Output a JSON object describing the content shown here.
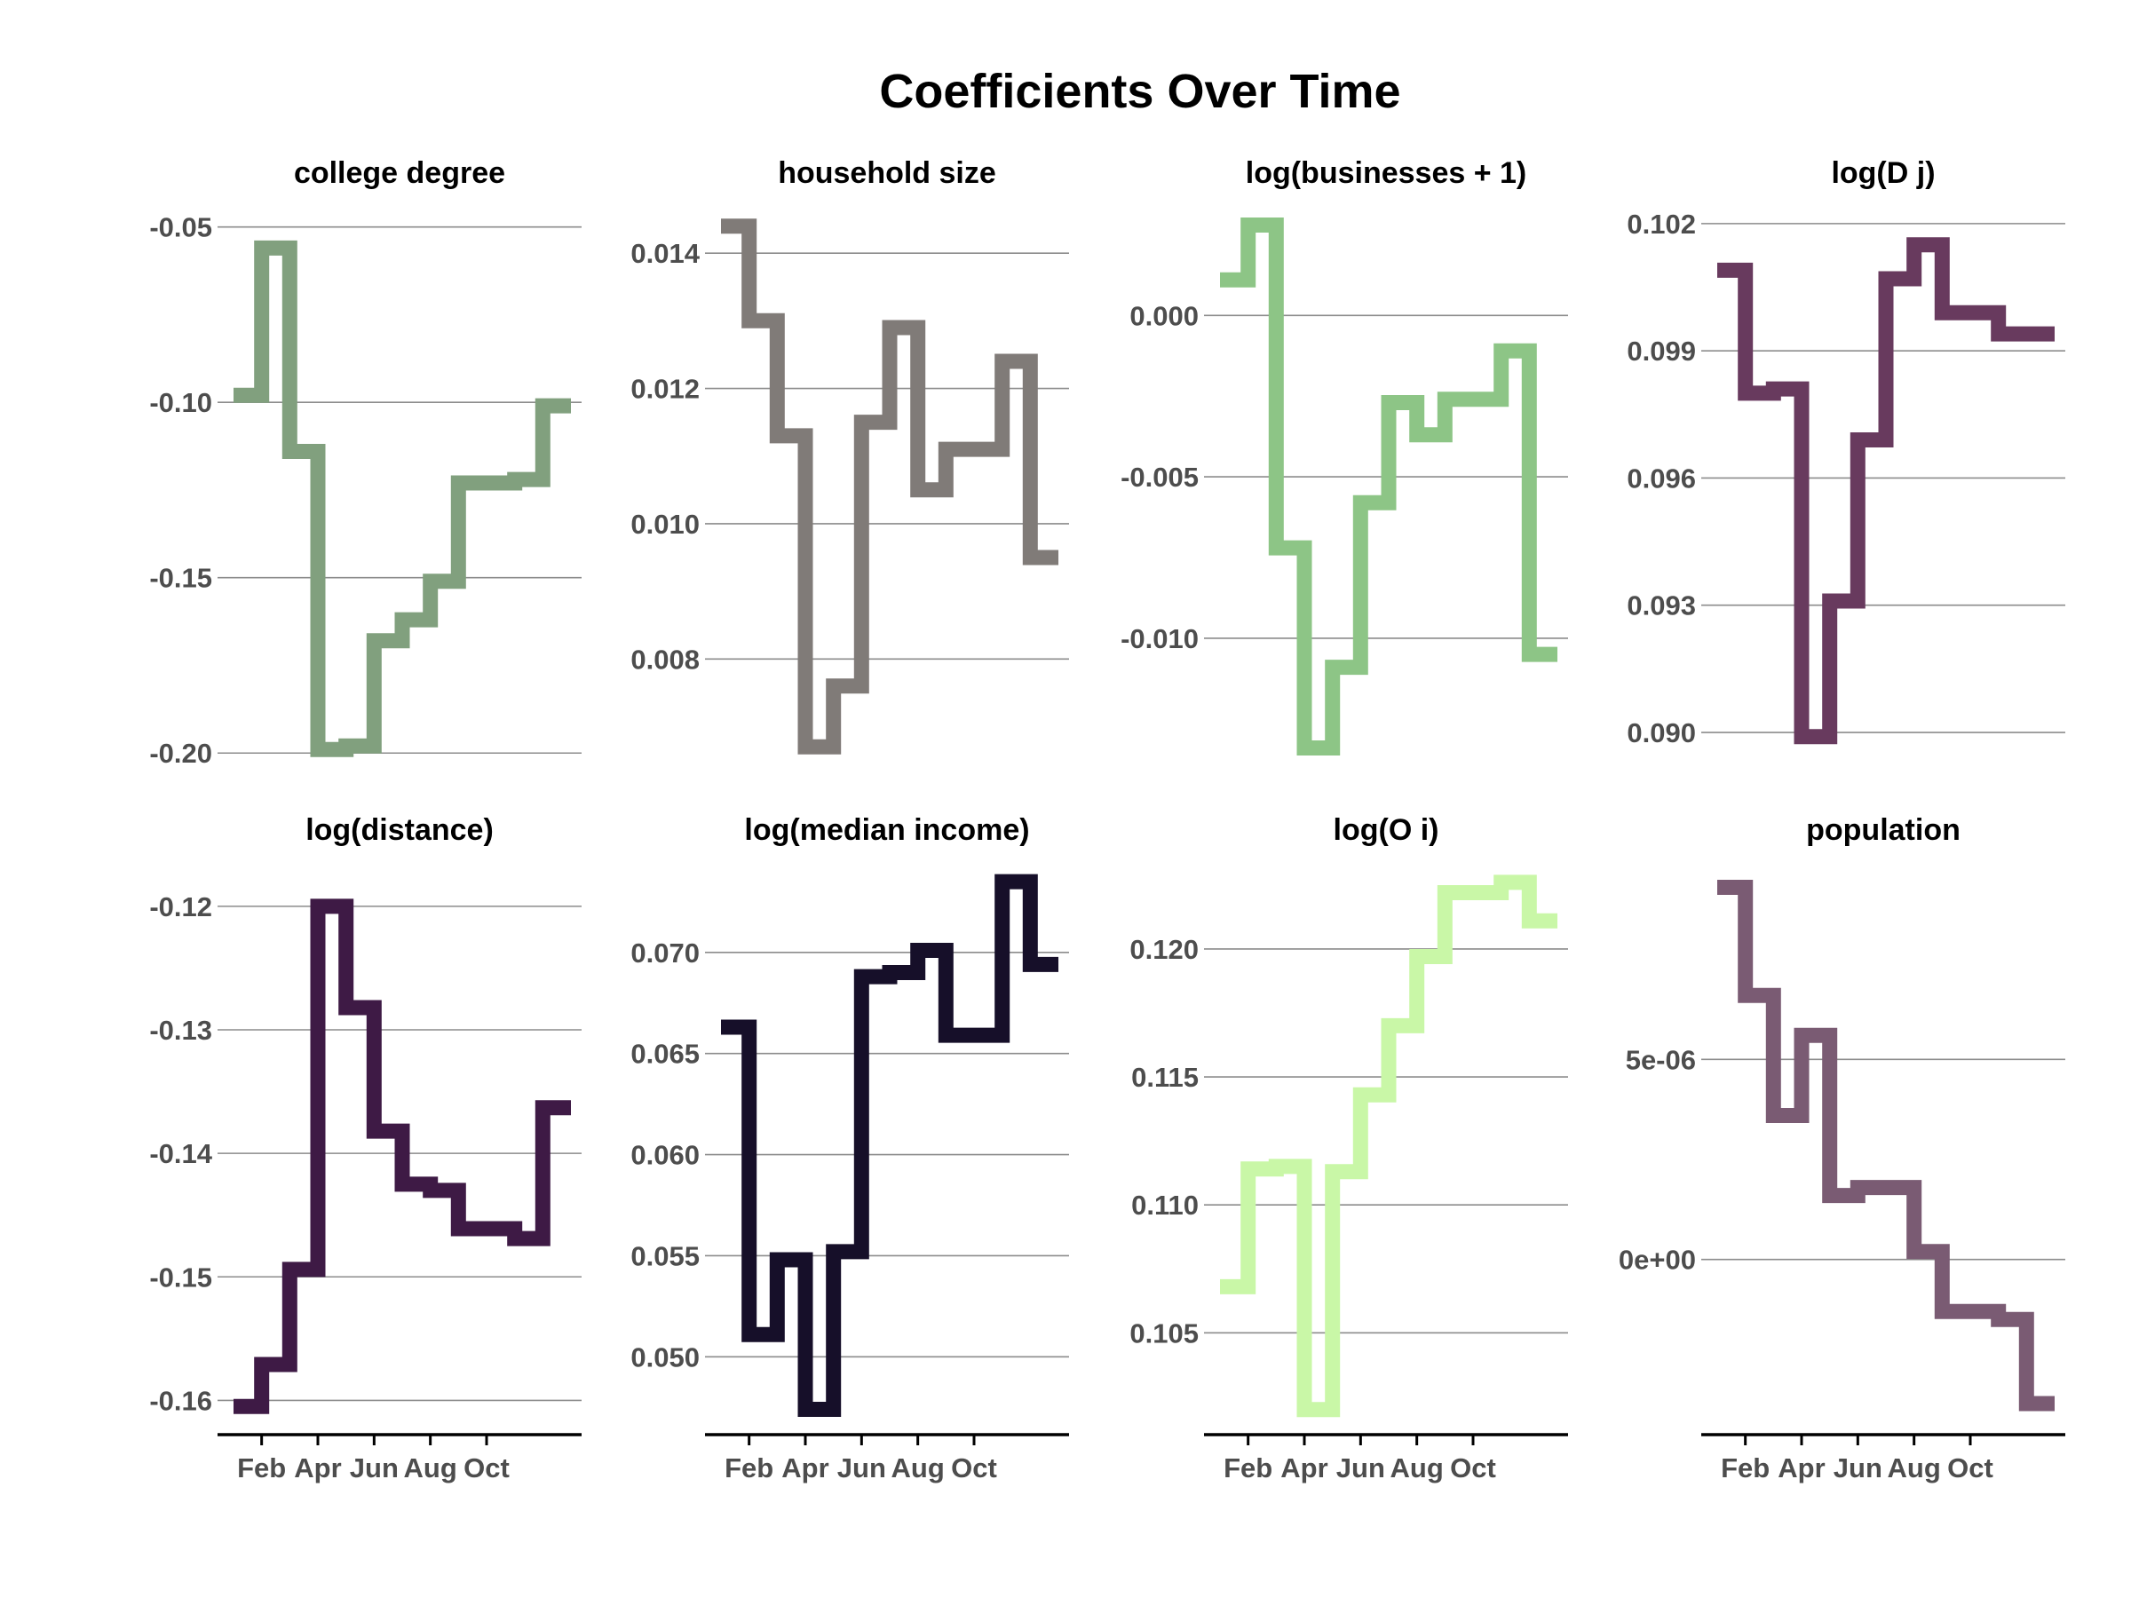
{
  "figure": {
    "title": "Coefficients Over Time"
  },
  "chart_data": [
    {
      "type": "line",
      "step": true,
      "title": "college degree",
      "color": "#81a07e",
      "x_ticks": [
        "Feb",
        "Apr",
        "Jun",
        "Aug",
        "Oct"
      ],
      "yticks": [
        -0.2,
        -0.15,
        -0.1,
        -0.05
      ],
      "ytick_labels": [
        "-0.20",
        "-0.15",
        "-0.10",
        "-0.05"
      ],
      "ylim": [
        -0.205,
        -0.043
      ],
      "values": [
        -0.098,
        -0.056,
        -0.114,
        -0.199,
        -0.198,
        -0.168,
        -0.162,
        -0.151,
        -0.123,
        -0.123,
        -0.122,
        -0.101
      ]
    },
    {
      "type": "line",
      "step": true,
      "title": "household size",
      "color": "#807b78",
      "x_ticks": [
        "Feb",
        "Apr",
        "Jun",
        "Aug",
        "Oct"
      ],
      "yticks": [
        0.008,
        0.01,
        0.012,
        0.014
      ],
      "ytick_labels": [
        "0.008",
        "0.010",
        "0.012",
        "0.014"
      ],
      "ylim": [
        0.00635,
        0.01475
      ],
      "values": [
        0.0144,
        0.013,
        0.0113,
        0.0067,
        0.0076,
        0.0115,
        0.0129,
        0.0105,
        0.0111,
        0.0111,
        0.0124,
        0.0095
      ]
    },
    {
      "type": "line",
      "step": true,
      "title": "log(businesses + 1)",
      "color": "#8dc586",
      "x_ticks": [
        "Feb",
        "Apr",
        "Jun",
        "Aug",
        "Oct"
      ],
      "yticks": [
        -0.01,
        -0.005,
        0.0
      ],
      "ytick_labels": [
        "-0.010",
        "-0.005",
        "0.000"
      ],
      "ylim": [
        -0.0141,
        0.0035
      ],
      "values": [
        0.0011,
        0.0028,
        -0.0072,
        -0.0134,
        -0.0109,
        -0.0058,
        -0.0027,
        -0.0037,
        -0.0026,
        -0.0026,
        -0.0011,
        -0.0105
      ]
    },
    {
      "type": "line",
      "step": true,
      "title": "log(D j)",
      "color": "#683a5e",
      "x_ticks": [
        "Feb",
        "Apr",
        "Jun",
        "Aug",
        "Oct"
      ],
      "yticks": [
        0.09,
        0.093,
        0.096,
        0.099,
        0.102
      ],
      "ytick_labels": [
        "0.090",
        "0.093",
        "0.096",
        "0.099",
        "0.102"
      ],
      "ylim": [
        0.0891,
        0.1025
      ],
      "values": [
        0.1009,
        0.098,
        0.0981,
        0.0899,
        0.0931,
        0.0969,
        0.1007,
        0.1015,
        0.0999,
        0.0999,
        0.0994,
        0.0994
      ]
    },
    {
      "type": "line",
      "step": true,
      "title": "log(distance)",
      "color": "#3e1a45",
      "x_ticks": [
        "Feb",
        "Apr",
        "Jun",
        "Aug",
        "Oct"
      ],
      "yticks": [
        -0.16,
        -0.15,
        -0.14,
        -0.13,
        -0.12
      ],
      "ytick_labels": [
        "-0.16",
        "-0.15",
        "-0.14",
        "-0.13",
        "-0.12"
      ],
      "ylim": [
        -0.1622,
        -0.1162
      ],
      "values": [
        -0.1605,
        -0.1571,
        -0.1494,
        -0.12,
        -0.1282,
        -0.1382,
        -0.1425,
        -0.143,
        -0.1461,
        -0.1461,
        -0.1469,
        -0.1363
      ]
    },
    {
      "type": "line",
      "step": true,
      "title": "log(median income)",
      "color": "#160f29",
      "x_ticks": [
        "Feb",
        "Apr",
        "Jun",
        "Aug",
        "Oct"
      ],
      "yticks": [
        0.05,
        0.055,
        0.06,
        0.065,
        0.07
      ],
      "ytick_labels": [
        "0.050",
        "0.055",
        "0.060",
        "0.065",
        "0.070"
      ],
      "ylim": [
        0.0465,
        0.0746
      ],
      "values": [
        0.0663,
        0.0511,
        0.0548,
        0.0474,
        0.0552,
        0.0688,
        0.069,
        0.0701,
        0.0659,
        0.0659,
        0.0735,
        0.0694
      ]
    },
    {
      "type": "line",
      "step": true,
      "title": "log(O i)",
      "color": "#c9f7a7",
      "x_ticks": [
        "Feb",
        "Apr",
        "Jun",
        "Aug",
        "Oct"
      ],
      "yticks": [
        0.105,
        0.11,
        0.115,
        0.12
      ],
      "ytick_labels": [
        "0.105",
        "0.110",
        "0.115",
        "0.120"
      ],
      "ylim": [
        0.1013,
        0.1235
      ],
      "values": [
        0.1068,
        0.1114,
        0.1115,
        0.102,
        0.1113,
        0.1143,
        0.117,
        0.1197,
        0.1222,
        0.1222,
        0.1226,
        0.1211
      ]
    },
    {
      "type": "line",
      "step": true,
      "title": "population",
      "color": "#7a5b73",
      "x_ticks": [
        "Feb",
        "Apr",
        "Jun",
        "Aug",
        "Oct"
      ],
      "yticks": [
        0,
        5e-06
      ],
      "ytick_labels": [
        "0e+00",
        "5e-06"
      ],
      "ylim": [
        -4.2e-06,
        1e-05
      ],
      "values": [
        9.3e-06,
        6.6e-06,
        3.6e-06,
        5.6e-06,
        1.6e-06,
        1.8e-06,
        1.8e-06,
        2e-07,
        -1.3e-06,
        -1.3e-06,
        -1.5e-06,
        -3.6e-06
      ]
    }
  ]
}
